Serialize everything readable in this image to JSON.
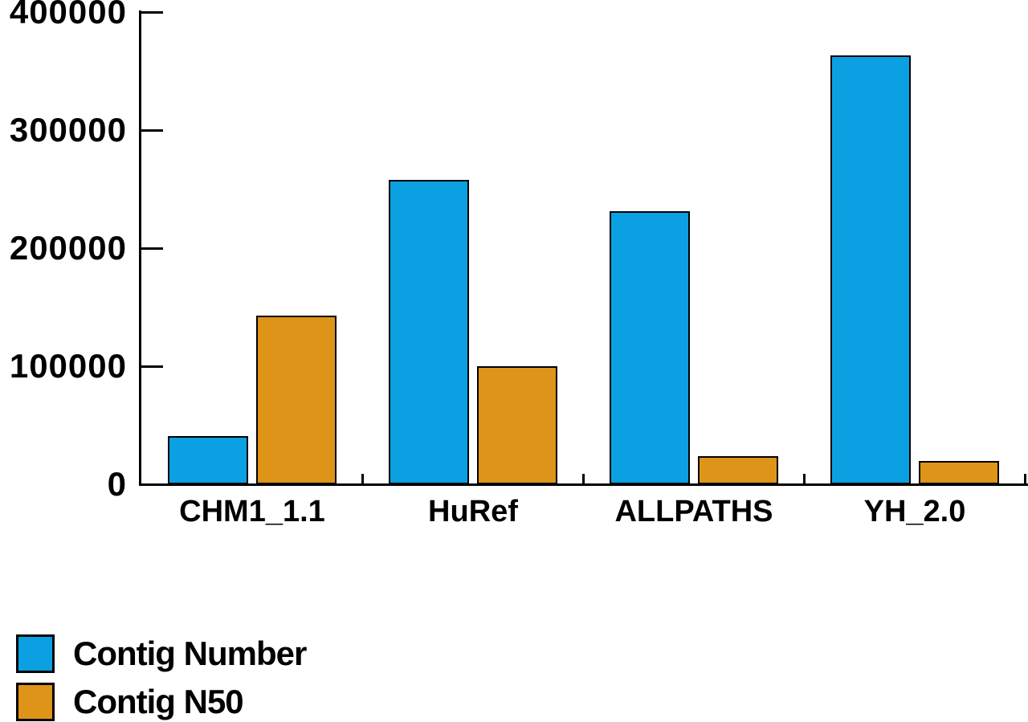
{
  "figure": {
    "background": "#ffffff",
    "axis_color": "#000000",
    "text_color": "#000000"
  },
  "chart_data": {
    "type": "bar",
    "title": "",
    "xlabel": "",
    "ylabel": "",
    "categories": [
      "CHM1_1.1",
      "HuRef",
      "ALLPATHS",
      "YH_2.0"
    ],
    "series": [
      {
        "name": "Contig Number",
        "color": "#0ba0e1",
        "values": [
          41000,
          258000,
          231000,
          363000
        ]
      },
      {
        "name": "Contig N50",
        "color": "#de9418",
        "values": [
          143000,
          100000,
          24000,
          20000
        ]
      }
    ],
    "ylim": [
      0,
      400000
    ],
    "yticks": [
      0,
      100000,
      200000,
      300000,
      400000
    ],
    "ytick_labels": [
      "0",
      "100000",
      "200000",
      "300000",
      "400000"
    ],
    "grid": false,
    "legend_position": "bottom-left",
    "bar_edge_color": "#000000"
  }
}
